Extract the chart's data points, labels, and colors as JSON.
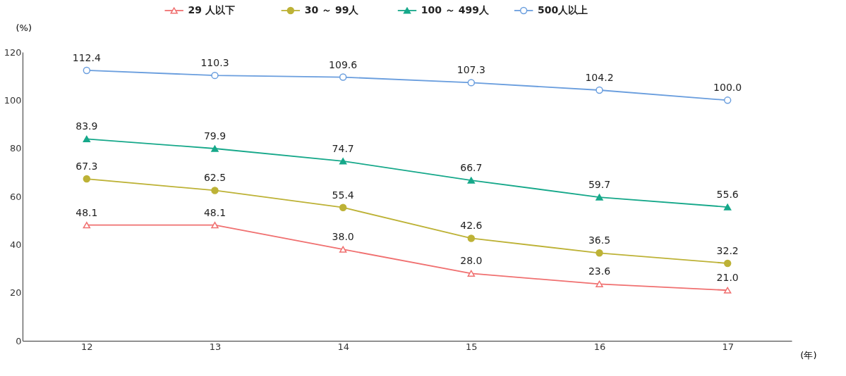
{
  "chart_data": {
    "type": "line",
    "ylabel": "(%)",
    "xlabel": "(年)",
    "categories": [
      "12",
      "13",
      "14",
      "15",
      "16",
      "17"
    ],
    "series": [
      {
        "name": "29 人以下",
        "color": "#f07070",
        "marker": "triangle-open",
        "values": [
          48.1,
          48.1,
          38.0,
          28.0,
          23.6,
          21.0
        ],
        "value_labels": [
          "48.1",
          "48.1",
          "38.0",
          "28.0",
          "23.6",
          "21.0"
        ]
      },
      {
        "name": "30 ～ 99人",
        "color": "#bdb236",
        "marker": "circle",
        "values": [
          67.3,
          62.5,
          55.4,
          42.6,
          36.5,
          32.2
        ],
        "value_labels": [
          "67.3",
          "62.5",
          "55.4",
          "42.6",
          "36.5",
          "32.2"
        ]
      },
      {
        "name": "100 ～ 499人",
        "color": "#16a88a",
        "marker": "triangle",
        "values": [
          83.9,
          79.9,
          74.7,
          66.7,
          59.7,
          55.6
        ],
        "value_labels": [
          "83.9",
          "79.9",
          "74.7",
          "66.7",
          "59.7",
          "55.6"
        ]
      },
      {
        "name": "500人以上",
        "color": "#6a9ede",
        "marker": "circle-open",
        "values": [
          112.4,
          110.3,
          109.6,
          107.3,
          104.2,
          100.0
        ],
        "value_labels": [
          "112.4",
          "110.3",
          "109.6",
          "107.3",
          "104.2",
          "100.0"
        ]
      }
    ],
    "ylim": [
      0,
      120
    ],
    "yticks": [
      0,
      20,
      40,
      60,
      80,
      100,
      120
    ],
    "grid": false,
    "legend": "top",
    "line_style": "solid"
  }
}
